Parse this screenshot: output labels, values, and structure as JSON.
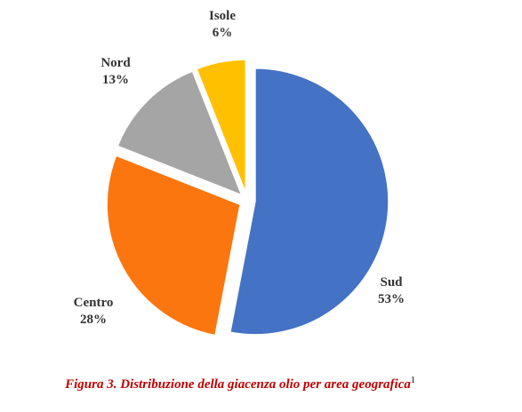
{
  "chart_data": {
    "type": "pie",
    "categories": [
      "Sud",
      "Centro",
      "Nord",
      "Isole"
    ],
    "values": [
      53,
      28,
      13,
      6
    ],
    "value_labels": [
      "53%",
      "28%",
      "13%",
      "6%"
    ],
    "colors": [
      "#4472c4",
      "#fb760e",
      "#a5a5a5",
      "#ffc000"
    ],
    "caption": "Figura 3. Distribuzione della giacenza olio per area geografica",
    "caption_note": "1"
  }
}
